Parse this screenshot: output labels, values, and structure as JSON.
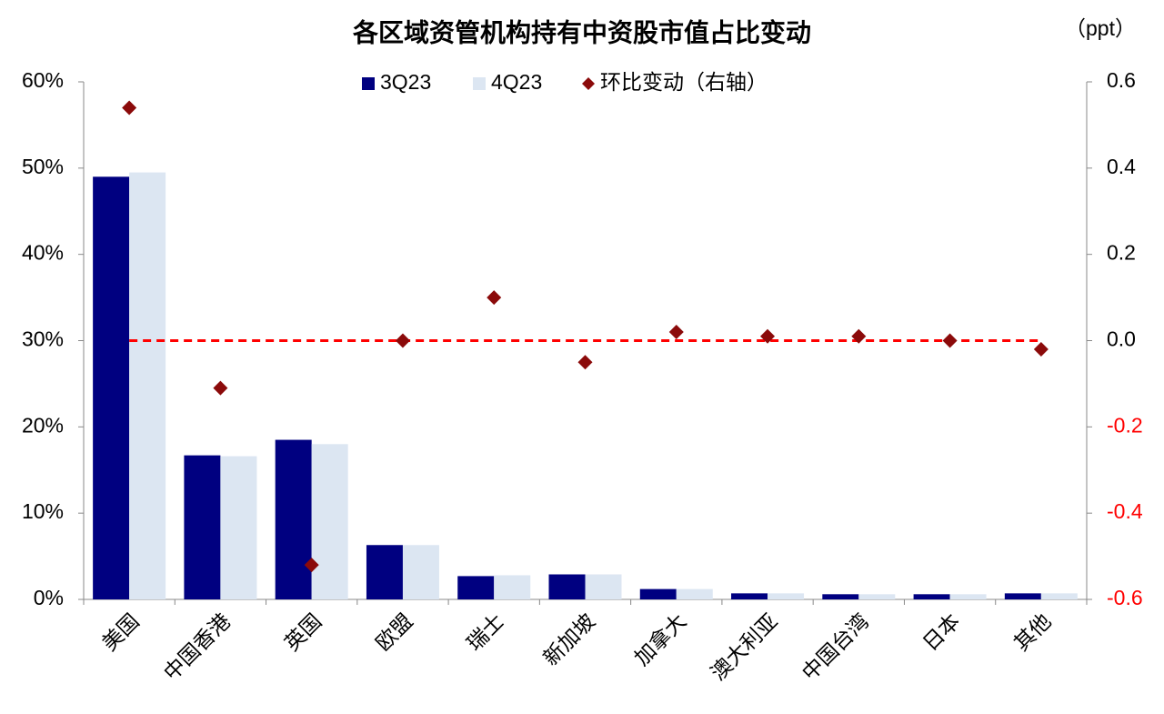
{
  "chart_data": {
    "type": "bar",
    "title": "各区域资管机构持有中资股市值占比变动",
    "y2_unit_label": "（ppt）",
    "categories": [
      "美国",
      "中国香港",
      "英国",
      "欧盟",
      "瑞士",
      "新加坡",
      "加拿大",
      "澳大利亚",
      "中国台湾",
      "日本",
      "其他"
    ],
    "series": [
      {
        "name": "3Q23",
        "type": "bar",
        "color": "#000080",
        "values": [
          49.0,
          16.7,
          18.5,
          6.3,
          2.7,
          2.9,
          1.2,
          0.7,
          0.6,
          0.6,
          0.7
        ]
      },
      {
        "name": "4Q23",
        "type": "bar",
        "color": "#dce6f2",
        "values": [
          49.5,
          16.6,
          18.0,
          6.3,
          2.8,
          2.9,
          1.2,
          0.7,
          0.6,
          0.6,
          0.7
        ]
      },
      {
        "name": "环比变动（右轴）",
        "type": "scatter",
        "axis": "y2",
        "color": "#8b0a0a",
        "values": [
          0.54,
          -0.11,
          -0.52,
          0.0,
          0.1,
          -0.05,
          0.02,
          0.01,
          0.01,
          0.0,
          -0.02
        ]
      }
    ],
    "ylim": [
      0,
      60
    ],
    "yticks": [
      {
        "value": 0,
        "label": "0%"
      },
      {
        "value": 10,
        "label": "10%"
      },
      {
        "value": 20,
        "label": "20%"
      },
      {
        "value": 30,
        "label": "30%"
      },
      {
        "value": 40,
        "label": "40%"
      },
      {
        "value": 50,
        "label": "50%"
      },
      {
        "value": 60,
        "label": "60%"
      }
    ],
    "y2lim": [
      -0.6,
      0.6
    ],
    "y2ticks": [
      -0.6,
      -0.4,
      -0.2,
      {
        "value": 0,
        "label": "0.0"
      },
      0.2,
      0.4,
      0.6
    ],
    "negative_tick_color": "#ff0000",
    "reference_line": {
      "value": 0,
      "color": "#ff0000"
    }
  }
}
